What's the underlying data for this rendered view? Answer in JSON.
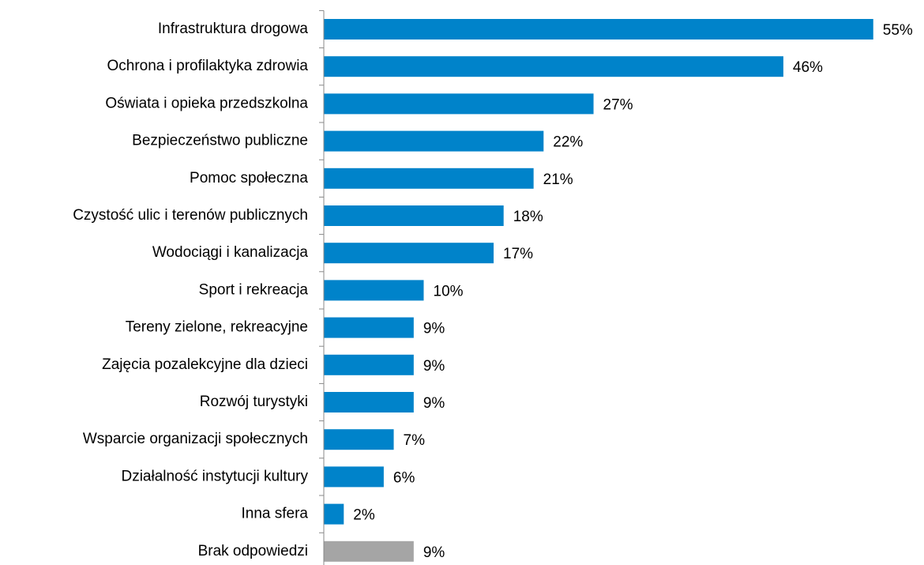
{
  "chart_data": {
    "type": "barh",
    "categories": [
      "Infrastruktura drogowa",
      "Ochrona i profilaktyka zdrowia",
      "Oświata i opieka przedszkolna",
      "Bezpieczeństwo publiczne",
      "Pomoc społeczna",
      "Czystość ulic i terenów publicznych",
      "Wodociągi i kanalizacja",
      "Sport i rekreacja",
      "Tereny zielone, rekreacyjne",
      "Zajęcia pozalekcyjne dla dzieci",
      "Rozwój turystyki",
      "Wsparcie organizacji społecznych",
      "Działalność instytucji kultury",
      "Inna sfera",
      "Brak odpowiedzi"
    ],
    "values": [
      55,
      46,
      27,
      22,
      21,
      18,
      17,
      10,
      9,
      9,
      9,
      7,
      6,
      2,
      9
    ],
    "value_labels": [
      "55%",
      "46%",
      "27%",
      "22%",
      "21%",
      "18%",
      "17%",
      "10%",
      "9%",
      "9%",
      "9%",
      "7%",
      "6%",
      "2%",
      "9%"
    ],
    "colors": [
      "#0083ca",
      "#0083ca",
      "#0083ca",
      "#0083ca",
      "#0083ca",
      "#0083ca",
      "#0083ca",
      "#0083ca",
      "#0083ca",
      "#0083ca",
      "#0083ca",
      "#0083ca",
      "#0083ca",
      "#0083ca",
      "#a5a5a5"
    ]
  }
}
